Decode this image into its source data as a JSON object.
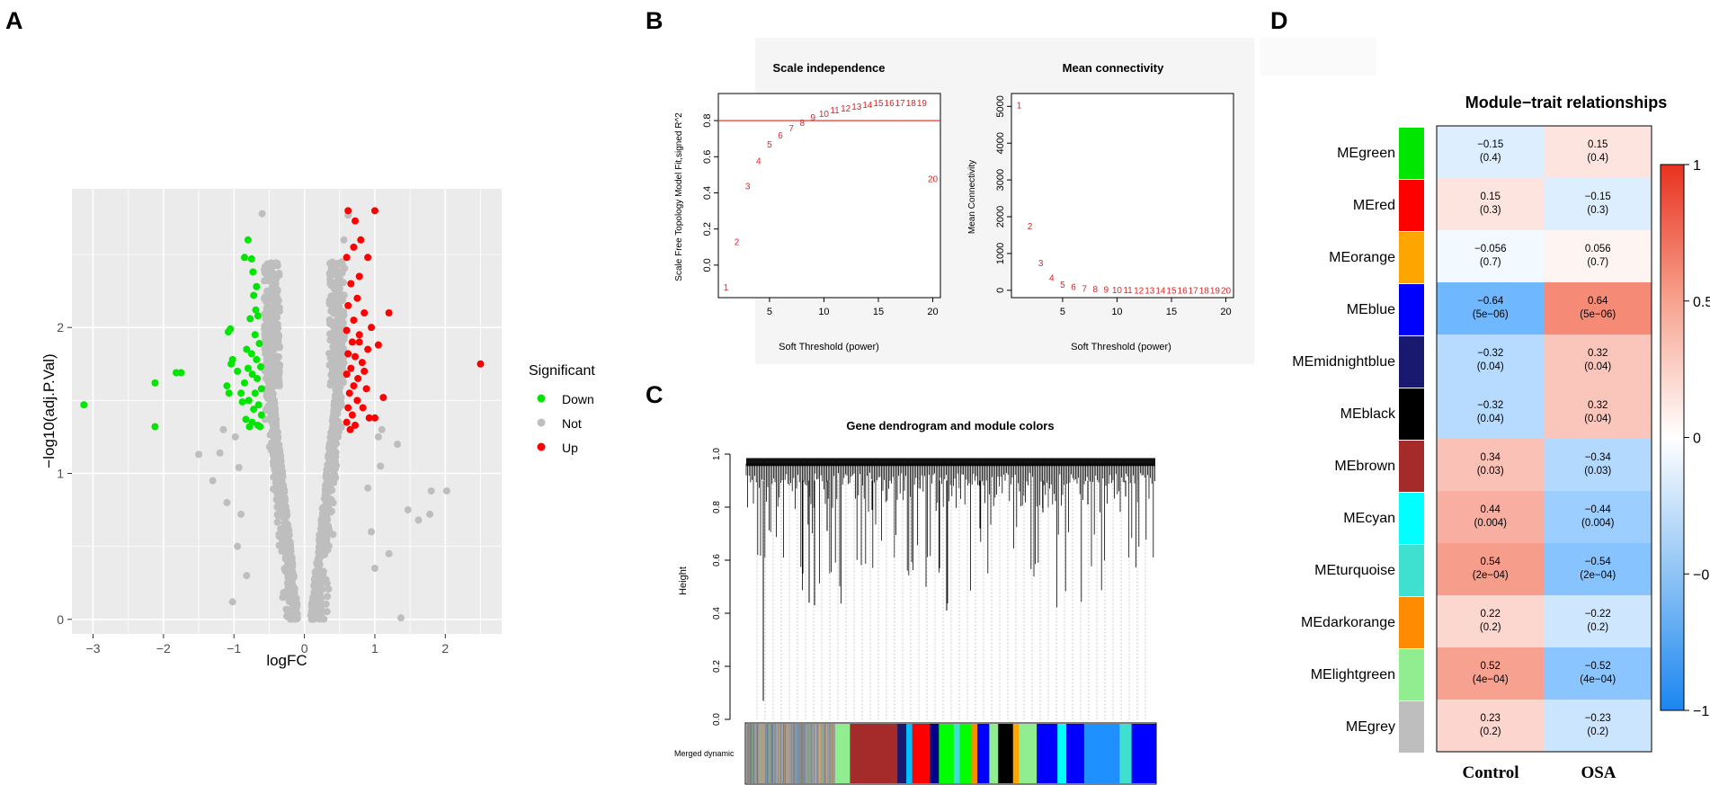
{
  "panels": {
    "a": "A",
    "b": "B",
    "c": "C",
    "d": "D"
  },
  "colors": {
    "down": "#00e600",
    "not": "#bebebe",
    "up": "#ff0000",
    "neg": "#1e90ff",
    "pos": "#f04a2a",
    "threshold_line": "#e53b3b",
    "wgcna_text": "#d62828"
  },
  "chart_data": [
    {
      "id": "volcano",
      "type": "scatter",
      "title": "",
      "xlabel": "logFC",
      "ylabel": "−log10(adj.P.Val)",
      "xlim": [
        -3.3,
        2.8
      ],
      "ylim": [
        -0.1,
        2.95
      ],
      "xticks": [
        -3,
        -2,
        -1,
        0,
        1,
        2
      ],
      "yticks": [
        0,
        1,
        2
      ],
      "legend": {
        "title": "Significant",
        "entries": [
          "Down",
          "Not",
          "Up"
        ],
        "position": "right"
      },
      "series": [
        {
          "name": "Down",
          "points": [
            [
              -3.13,
              1.47
            ],
            [
              -2.12,
              1.62
            ],
            [
              -2.12,
              1.32
            ],
            [
              -1.82,
              1.69
            ],
            [
              -1.75,
              1.69
            ],
            [
              -1.08,
              1.97
            ],
            [
              -1.05,
              1.99
            ],
            [
              -1.04,
              1.75
            ],
            [
              -1.02,
              1.78
            ],
            [
              -1.1,
              1.6
            ],
            [
              -1.07,
              1.55
            ],
            [
              -0.95,
              1.7
            ],
            [
              -0.9,
              1.55
            ],
            [
              -0.88,
              1.49
            ],
            [
              -0.8,
              2.6
            ],
            [
              -0.75,
              2.47
            ],
            [
              -0.85,
              2.48
            ],
            [
              -0.73,
              2.38
            ],
            [
              -0.68,
              2.28
            ],
            [
              -0.72,
              2.22
            ],
            [
              -0.69,
              2.12
            ],
            [
              -0.66,
              2.08
            ],
            [
              -0.77,
              2.06
            ],
            [
              -0.7,
              1.95
            ],
            [
              -0.64,
              1.89
            ],
            [
              -0.82,
              1.85
            ],
            [
              -0.75,
              1.82
            ],
            [
              -0.68,
              1.78
            ],
            [
              -0.62,
              1.73
            ],
            [
              -0.8,
              1.72
            ],
            [
              -0.74,
              1.68
            ],
            [
              -0.67,
              1.65
            ],
            [
              -0.85,
              1.62
            ],
            [
              -0.61,
              1.58
            ],
            [
              -0.7,
              1.55
            ],
            [
              -0.79,
              1.5
            ],
            [
              -0.65,
              1.47
            ],
            [
              -0.72,
              1.44
            ],
            [
              -0.61,
              1.4
            ],
            [
              -0.83,
              1.37
            ],
            [
              -0.74,
              1.35
            ],
            [
              -0.66,
              1.33
            ],
            [
              -0.78,
              1.32
            ],
            [
              -0.63,
              1.32
            ]
          ]
        },
        {
          "name": "Up",
          "points": [
            [
              2.5,
              1.75
            ],
            [
              0.62,
              2.8
            ],
            [
              0.72,
              2.73
            ],
            [
              1.0,
              2.8
            ],
            [
              0.8,
              2.6
            ],
            [
              0.7,
              2.55
            ],
            [
              0.6,
              2.48
            ],
            [
              0.9,
              2.48
            ],
            [
              0.78,
              2.35
            ],
            [
              0.66,
              2.3
            ],
            [
              1.2,
              2.1
            ],
            [
              0.75,
              2.2
            ],
            [
              0.62,
              2.15
            ],
            [
              0.85,
              2.1
            ],
            [
              0.7,
              2.05
            ],
            [
              0.95,
              2.0
            ],
            [
              0.6,
              1.98
            ],
            [
              0.78,
              1.95
            ],
            [
              0.68,
              1.9
            ],
            [
              0.9,
              1.85
            ],
            [
              1.05,
              1.88
            ],
            [
              0.62,
              1.82
            ],
            [
              0.72,
              1.8
            ],
            [
              0.82,
              1.76
            ],
            [
              0.66,
              1.72
            ],
            [
              0.6,
              1.68
            ],
            [
              0.76,
              1.65
            ],
            [
              0.7,
              1.6
            ],
            [
              0.88,
              1.58
            ],
            [
              1.12,
              1.52
            ],
            [
              0.64,
              1.55
            ],
            [
              0.75,
              1.5
            ],
            [
              0.62,
              1.45
            ],
            [
              0.83,
              1.45
            ],
            [
              0.68,
              1.4
            ],
            [
              0.92,
              1.38
            ],
            [
              1.0,
              1.38
            ],
            [
              0.6,
              1.35
            ],
            [
              0.72,
              1.33
            ],
            [
              0.65,
              1.3
            ],
            [
              0.78,
              1.9
            ],
            [
              0.85,
              1.7
            ]
          ]
        }
      ]
    },
    {
      "id": "scale-independence",
      "type": "scatter",
      "title": "Scale independence",
      "xlabel": "Soft Threshold (power)",
      "ylabel": "Scale Free Topology Model Fit,signed R^2",
      "xlim": [
        0.3,
        20.7
      ],
      "ylim": [
        -0.18,
        0.95
      ],
      "xticks": [
        5,
        10,
        15,
        20
      ],
      "yticks": [
        0.0,
        0.2,
        0.4,
        0.6,
        0.8
      ],
      "hline": 0.8,
      "points": [
        [
          1,
          -0.12
        ],
        [
          2,
          0.13
        ],
        [
          3,
          0.44
        ],
        [
          4,
          0.58
        ],
        [
          5,
          0.67
        ],
        [
          6,
          0.72
        ],
        [
          7,
          0.76
        ],
        [
          8,
          0.79
        ],
        [
          9,
          0.82
        ],
        [
          10,
          0.84
        ],
        [
          11,
          0.86
        ],
        [
          12,
          0.87
        ],
        [
          13,
          0.88
        ],
        [
          14,
          0.89
        ],
        [
          15,
          0.9
        ],
        [
          16,
          0.9
        ],
        [
          17,
          0.9
        ],
        [
          18,
          0.9
        ],
        [
          19,
          0.9
        ],
        [
          20,
          0.48
        ]
      ],
      "labels": [
        "1",
        "2",
        "3",
        "4",
        "5",
        "6",
        "7",
        "8",
        "9",
        "10",
        "11",
        "12",
        "13",
        "14",
        "15",
        "16",
        "17",
        "18",
        "19",
        "20"
      ]
    },
    {
      "id": "mean-connectivity",
      "type": "scatter",
      "title": "Mean connectivity",
      "xlabel": "Soft Threshold (power)",
      "ylabel": "Mean Connectivity",
      "xlim": [
        0.3,
        20.7
      ],
      "ylim": [
        -200,
        5350
      ],
      "xticks": [
        5,
        10,
        15,
        20
      ],
      "yticks": [
        0,
        1000,
        2000,
        3000,
        4000,
        5000
      ],
      "points": [
        [
          1,
          5050
        ],
        [
          2,
          1750
        ],
        [
          3,
          750
        ],
        [
          4,
          350
        ],
        [
          5,
          170
        ],
        [
          6,
          100
        ],
        [
          7,
          60
        ],
        [
          8,
          40
        ],
        [
          9,
          30
        ],
        [
          10,
          20
        ],
        [
          11,
          15
        ],
        [
          12,
          12
        ],
        [
          13,
          10
        ],
        [
          14,
          8
        ],
        [
          15,
          6
        ],
        [
          16,
          5
        ],
        [
          17,
          4
        ],
        [
          18,
          3
        ],
        [
          19,
          3
        ],
        [
          20,
          2
        ]
      ],
      "labels": [
        "1",
        "2",
        "3",
        "4",
        "5",
        "6",
        "7",
        "8",
        "9",
        "10",
        "11",
        "12",
        "13",
        "14",
        "15",
        "16",
        "17",
        "18",
        "19",
        "20"
      ]
    },
    {
      "id": "dendrogram",
      "type": "dendrogram",
      "title": "Gene dendrogram and module colors",
      "ylabel": "Height",
      "yticks": [
        0.0,
        0.2,
        0.4,
        0.6,
        0.8,
        1.0
      ],
      "ylim": [
        0,
        1
      ],
      "color_row_label": "Merged dynamic",
      "module_bar": [
        {
          "color": "#9aa0a8",
          "w": 2.0
        },
        {
          "color": "#6b8fb0",
          "w": 1.0
        },
        {
          "color": "#b59a7a",
          "w": 1.0
        },
        {
          "color": "#808080",
          "w": 2.0
        },
        {
          "color": "#7a9c8a",
          "w": 1.0
        },
        {
          "color": "#a0a0a0",
          "w": 2.5
        },
        {
          "color": "#5d7fa3",
          "w": 1.0
        },
        {
          "color": "#c6a88a",
          "w": 1.0
        },
        {
          "color": "#9a9a9a",
          "w": 2.5
        },
        {
          "color": "#8aa6c8",
          "w": 1.0
        },
        {
          "color": "#90ee90",
          "w": 2.5
        },
        {
          "color": "#a52a2a",
          "w": 8.0
        },
        {
          "color": "#191970",
          "w": 1.5
        },
        {
          "color": "#00bfff",
          "w": 1.0
        },
        {
          "color": "#ff0000",
          "w": 3.0
        },
        {
          "color": "#00008b",
          "w": 1.5
        },
        {
          "color": "#00ff00",
          "w": 2.5
        },
        {
          "color": "#40e0d0",
          "w": 1.0
        },
        {
          "color": "#00ff00",
          "w": 2.0
        },
        {
          "color": "#ff8c00",
          "w": 1.0
        },
        {
          "color": "#0000ff",
          "w": 2.0
        },
        {
          "color": "#90ee90",
          "w": 1.5
        },
        {
          "color": "#000000",
          "w": 2.5
        },
        {
          "color": "#ffa500",
          "w": 1.0
        },
        {
          "color": "#90ee90",
          "w": 3.0
        },
        {
          "color": "#0000ff",
          "w": 3.5
        },
        {
          "color": "#00ffff",
          "w": 1.5
        },
        {
          "color": "#0000ff",
          "w": 3.0
        },
        {
          "color": "#1e90ff",
          "w": 6.0
        },
        {
          "color": "#40e0d0",
          "w": 2.0
        },
        {
          "color": "#0000ff",
          "w": 4.0
        }
      ]
    },
    {
      "id": "module-trait",
      "type": "heatmap",
      "title": "Module−trait relationships",
      "columns": [
        "Control",
        "OSA"
      ],
      "rows": [
        "MEgreen",
        "MEred",
        "MEorange",
        "MEblue",
        "MEmidnightblue",
        "MEblack",
        "MEbrown",
        "MEcyan",
        "MEturquoise",
        "MEdarkorange",
        "MElightgreen",
        "MEgrey"
      ],
      "module_colors": [
        "#00e600",
        "#ff0000",
        "#ffa500",
        "#0000ff",
        "#191970",
        "#000000",
        "#a52a2a",
        "#00ffff",
        "#40e0d0",
        "#ff8c00",
        "#90ee90",
        "#bebebe"
      ],
      "values": [
        [
          -0.15,
          0.15
        ],
        [
          0.15,
          -0.15
        ],
        [
          -0.056,
          0.056
        ],
        [
          -0.64,
          0.64
        ],
        [
          -0.32,
          0.32
        ],
        [
          -0.32,
          0.32
        ],
        [
          0.34,
          -0.34
        ],
        [
          0.44,
          -0.44
        ],
        [
          0.54,
          -0.54
        ],
        [
          0.22,
          -0.22
        ],
        [
          0.52,
          -0.52
        ],
        [
          0.23,
          -0.23
        ]
      ],
      "cell_text": [
        [
          [
            "−0.15",
            "(0.4)"
          ],
          [
            "0.15",
            "(0.4)"
          ]
        ],
        [
          [
            "0.15",
            "(0.3)"
          ],
          [
            "−0.15",
            "(0.3)"
          ]
        ],
        [
          [
            "−0.056",
            "(0.7)"
          ],
          [
            "0.056",
            "(0.7)"
          ]
        ],
        [
          [
            "−0.64",
            "(5e−06)"
          ],
          [
            "0.64",
            "(5e−06)"
          ]
        ],
        [
          [
            "−0.32",
            "(0.04)"
          ],
          [
            "0.32",
            "(0.04)"
          ]
        ],
        [
          [
            "−0.32",
            "(0.04)"
          ],
          [
            "0.32",
            "(0.04)"
          ]
        ],
        [
          [
            "0.34",
            "(0.03)"
          ],
          [
            "−0.34",
            "(0.03)"
          ]
        ],
        [
          [
            "0.44",
            "(0.004)"
          ],
          [
            "−0.44",
            "(0.004)"
          ]
        ],
        [
          [
            "0.54",
            "(2e−04)"
          ],
          [
            "−0.54",
            "(2e−04)"
          ]
        ],
        [
          [
            "0.22",
            "(0.2)"
          ],
          [
            "−0.22",
            "(0.2)"
          ]
        ],
        [
          [
            "0.52",
            "(4e−04)"
          ],
          [
            "−0.52",
            "(4e−04)"
          ]
        ],
        [
          [
            "0.23",
            "(0.2)"
          ],
          [
            "−0.23",
            "(0.2)"
          ]
        ]
      ],
      "colorbar": {
        "range": [
          -1,
          1
        ],
        "ticks": [
          "1",
          "0.5",
          "0",
          "−0.5",
          "−1"
        ]
      }
    }
  ]
}
